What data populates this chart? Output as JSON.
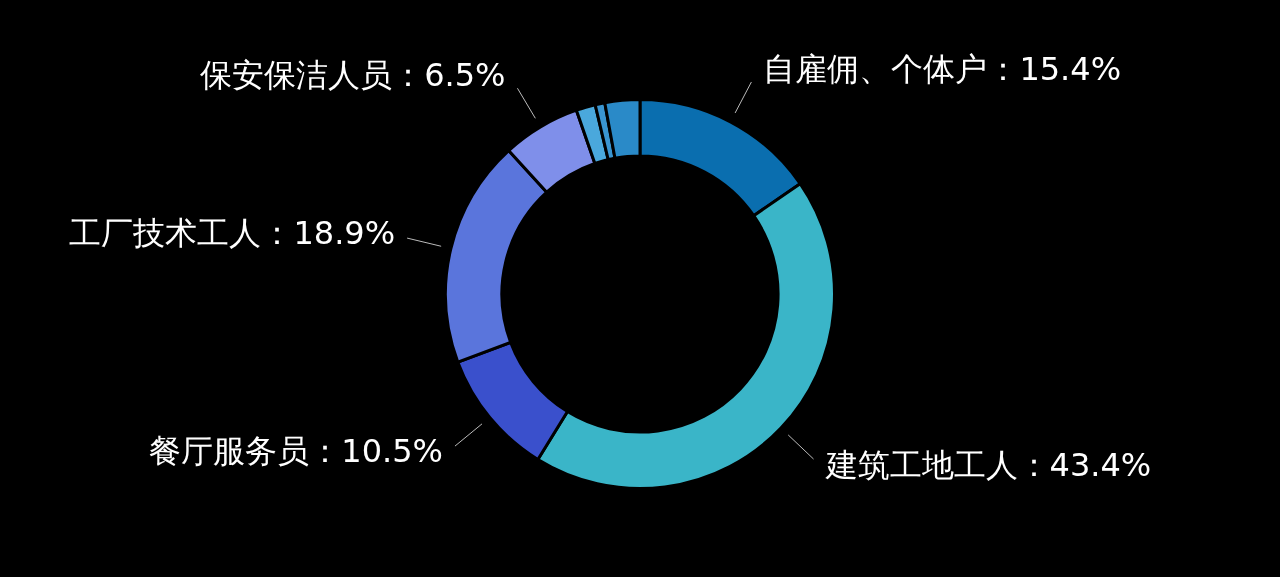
{
  "chart_data": {
    "type": "donut",
    "categories": [
      "自雇佣、个体户",
      "建筑工地工人",
      "餐厅服务员",
      "工厂技术工人",
      "保安保洁人员",
      null,
      null,
      null
    ],
    "values": [
      15.4,
      43.4,
      10.5,
      18.9,
      6.5,
      1.6,
      0.8,
      2.9
    ],
    "colors": [
      "#0a6eaf",
      "#3ab5c8",
      "#3a50cc",
      "#5a75dc",
      "#7f8fea",
      "#4aa8dc",
      "#3a95d0",
      "#2a8ac8"
    ],
    "value_labels": [
      "15.4%",
      "43.4%",
      "10.5%",
      "18.9%",
      "6.5%",
      null,
      null,
      null
    ],
    "legend": false
  }
}
